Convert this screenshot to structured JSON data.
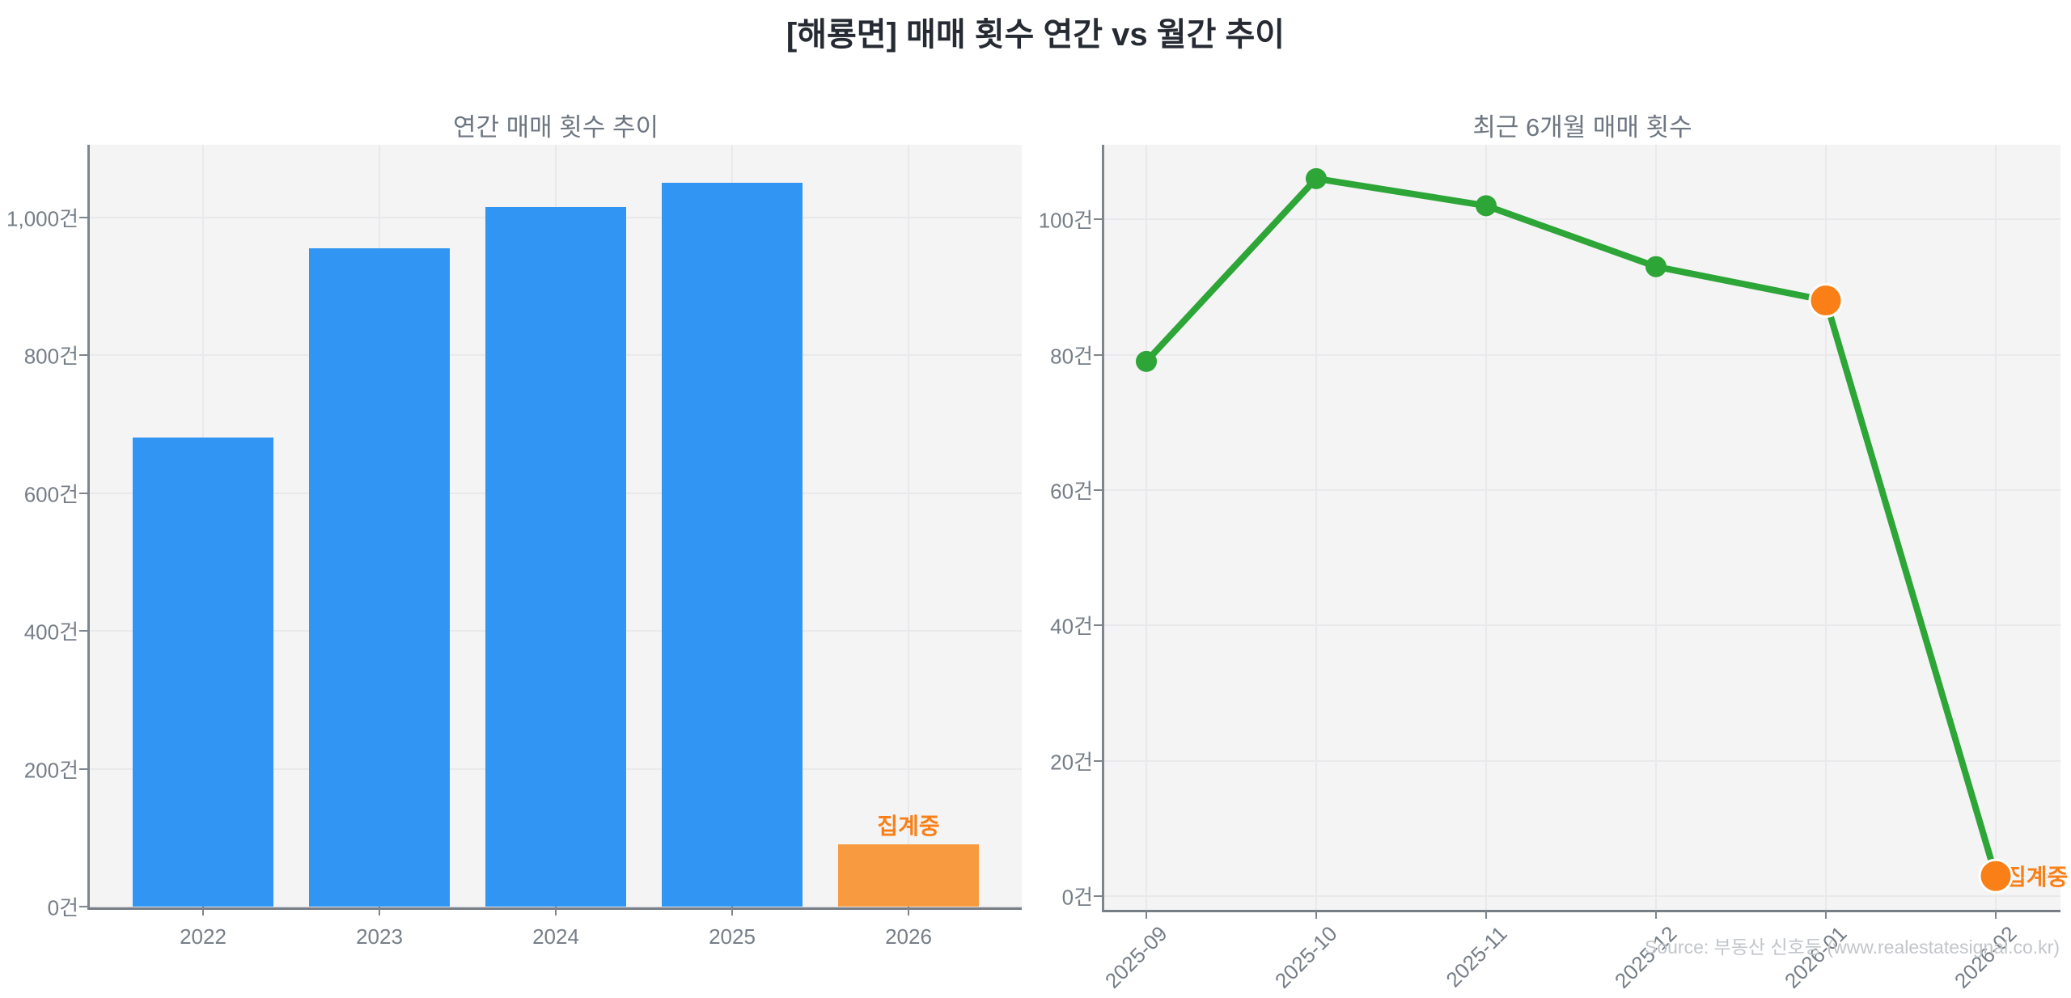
{
  "page": {
    "title": "[해룡면] 매매 횟수 연간 vs 월간 추이",
    "source": "Source: 부동산 신호등 (www.realestatesignal.co.kr)"
  },
  "chart_data": [
    {
      "type": "bar",
      "title": "연간 매매 횟수 추이",
      "unit": "건",
      "categories": [
        "2022",
        "2023",
        "2024",
        "2025",
        "2026"
      ],
      "values": [
        680,
        955,
        1015,
        1050,
        90
      ],
      "bar_colors": [
        "#3196f3",
        "#3196f3",
        "#3196f3",
        "#3196f3",
        "#f79a40"
      ],
      "ylim": [
        0,
        1105
      ],
      "yticks": [
        0,
        200,
        400,
        600,
        800,
        1000
      ],
      "ytick_labels": [
        "0건",
        "200건",
        "400건",
        "600건",
        "800건",
        "1,000건"
      ],
      "grid": true,
      "legend": "none",
      "xtick_rotation": 0,
      "annotation": {
        "text": "집계중",
        "color": "#f97f16",
        "placement": "above-bar",
        "index": 4
      }
    },
    {
      "type": "line",
      "title": "최근 6개월 매매 횟수",
      "unit": "건",
      "categories": [
        "2025-09",
        "2025-10",
        "2025-11",
        "2025-12",
        "2026-01",
        "2026-02"
      ],
      "values": [
        79,
        106,
        102,
        93,
        88,
        3
      ],
      "line_color": "#2da537",
      "markers": [
        {
          "color": "#2da537",
          "r": 13
        },
        {
          "color": "#2da537",
          "r": 13
        },
        {
          "color": "#2da537",
          "r": 13
        },
        {
          "color": "#2da537",
          "r": 13
        },
        {
          "color": "#f97f16",
          "r": 20,
          "edge": "#ffffff"
        },
        {
          "color": "#f97f16",
          "r": 20,
          "edge": "#ffffff"
        }
      ],
      "ylim": [
        -2,
        111
      ],
      "yticks": [
        0,
        20,
        40,
        60,
        80,
        100
      ],
      "ytick_labels": [
        "0건",
        "20건",
        "40건",
        "60건",
        "80건",
        "100건"
      ],
      "grid": true,
      "legend": "none",
      "xtick_rotation": -45,
      "annotation": {
        "text": "집계중",
        "color": "#f97f16",
        "placement": "right-of-point",
        "index": 5
      }
    }
  ]
}
